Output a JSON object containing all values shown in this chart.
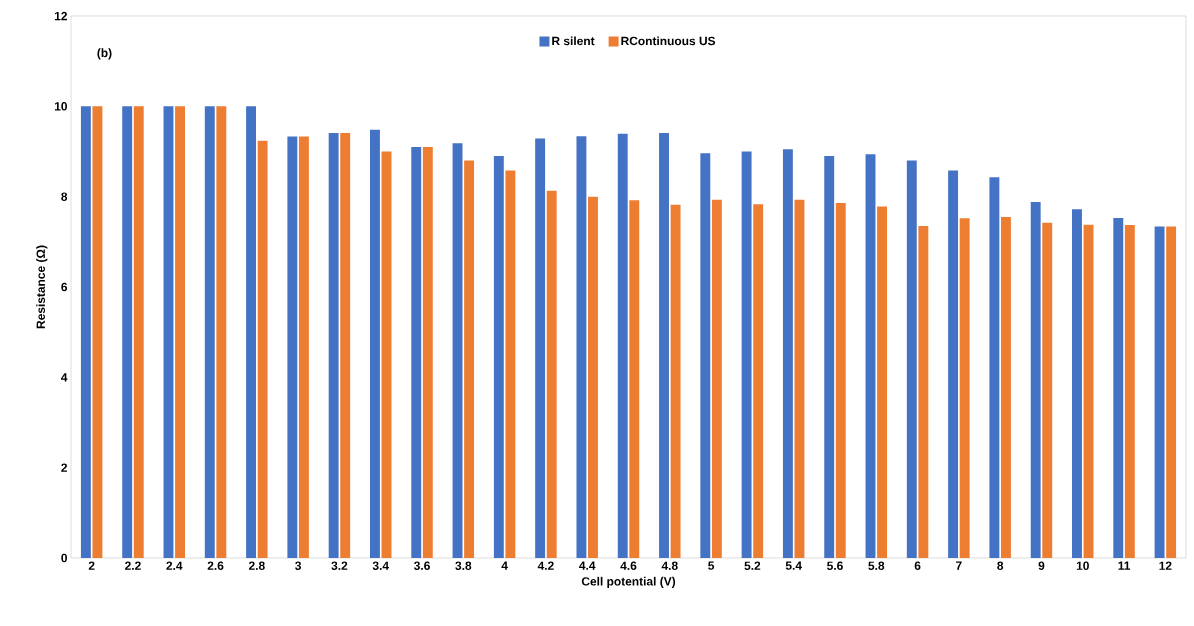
{
  "chart_data": {
    "type": "bar",
    "xlabel": "Cell potential (V)",
    "ylabel": "Resistance (Ω)",
    "annotations": [
      "(b)"
    ],
    "categories": [
      "2",
      "2.2",
      "2.4",
      "2.6",
      "2.8",
      "3",
      "3.2",
      "3.4",
      "3.6",
      "3.8",
      "4",
      "4.2",
      "4.4",
      "4.6",
      "4.8",
      "5",
      "5.2",
      "5.4",
      "5.6",
      "5.8",
      "6",
      "7",
      "8",
      "9",
      "10",
      "11",
      "12"
    ],
    "series": [
      {
        "name": "R silent",
        "color": "#4472c4",
        "values": [
          10,
          10,
          10,
          10,
          10,
          9.33,
          9.41,
          9.48,
          9.1,
          9.18,
          8.9,
          9.29,
          9.34,
          9.39,
          9.41,
          8.96,
          9.0,
          9.05,
          8.9,
          8.94,
          8.8,
          8.58,
          8.43,
          7.88,
          7.72,
          7.53,
          7.34
        ]
      },
      {
        "name": "RContinuous US",
        "color": "#ed7d31",
        "values": [
          10,
          10,
          10,
          10,
          9.24,
          9.33,
          9.41,
          9.0,
          9.1,
          8.8,
          8.58,
          8.13,
          8.0,
          7.92,
          7.82,
          7.93,
          7.83,
          7.93,
          7.86,
          7.78,
          7.35,
          7.52,
          7.55,
          7.42,
          7.38,
          7.37,
          7.34
        ]
      }
    ],
    "ylim": [
      0,
      12
    ],
    "yticks": [
      0,
      2,
      4,
      6,
      8,
      10,
      12
    ],
    "grid": false,
    "legend": "top"
  }
}
